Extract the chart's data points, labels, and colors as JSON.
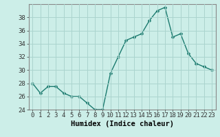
{
  "x": [
    0,
    1,
    2,
    3,
    4,
    5,
    6,
    7,
    8,
    9,
    10,
    11,
    12,
    13,
    14,
    15,
    16,
    17,
    18,
    19,
    20,
    21,
    22,
    23
  ],
  "y": [
    28,
    26.5,
    27.5,
    27.5,
    26.5,
    26,
    26,
    25,
    24,
    24,
    29.5,
    32,
    34.5,
    35,
    35.5,
    37.5,
    39,
    39.5,
    35,
    35.5,
    32.5,
    31,
    30.5,
    30
  ],
  "line_color": "#1a7a6e",
  "marker": "D",
  "marker_size": 2.5,
  "bg_color": "#cceee8",
  "grid_color": "#aad4ce",
  "xlabel": "Humidex (Indice chaleur)",
  "ylim": [
    24,
    40
  ],
  "xlim": [
    -0.5,
    23.5
  ],
  "yticks": [
    24,
    26,
    28,
    30,
    32,
    34,
    36,
    38
  ],
  "xticks": [
    0,
    1,
    2,
    3,
    4,
    5,
    6,
    7,
    8,
    9,
    10,
    11,
    12,
    13,
    14,
    15,
    16,
    17,
    18,
    19,
    20,
    21,
    22,
    23
  ],
  "tick_label_fontsize": 6.5,
  "xlabel_fontsize": 7.5,
  "line_width": 1.0
}
